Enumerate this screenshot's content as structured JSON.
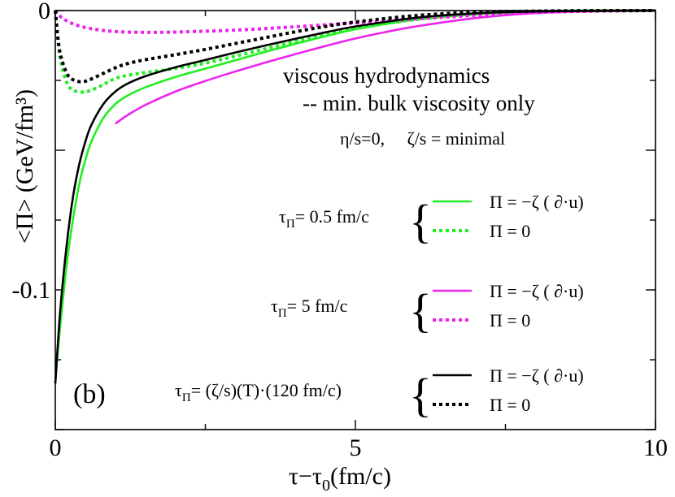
{
  "chart_data": {
    "type": "line",
    "panel_label": "(b)",
    "xlabel": {
      "main": "τ−τ",
      "sub": "0",
      "rest": "(fm/c)"
    },
    "ylabel": "<Π> (GeV/fm³)",
    "xlim": [
      0,
      10
    ],
    "ylim": [
      -0.15,
      0
    ],
    "x_ticks": [
      {
        "value": 0,
        "label": "0"
      },
      {
        "value": 5,
        "label": "5"
      },
      {
        "value": 10,
        "label": "10"
      }
    ],
    "y_ticks": [
      {
        "value": 0,
        "label": "0"
      },
      {
        "value": -0.1,
        "label": "-0.1"
      }
    ],
    "annotations": {
      "line1": "viscous hydrodynamics",
      "line2": "-- min. bulk viscosity only",
      "line3": "η/s=0,     ζ/s = minimal"
    },
    "legend_groups": [
      {
        "tau_label": "τ",
        "tau_sub": "Π",
        "tau_rest": "= 0.5 fm/c",
        "color": "#22ee22",
        "entries": [
          {
            "style": "solid",
            "label": "Π = −ζ ( ∂·u)"
          },
          {
            "style": "dotted",
            "label": "Π = 0"
          }
        ]
      },
      {
        "tau_label": "τ",
        "tau_sub": "Π",
        "tau_rest": "= 5 fm/c",
        "color": "#ee22ee",
        "entries": [
          {
            "style": "solid",
            "label": "Π = −ζ ( ∂·u)"
          },
          {
            "style": "dotted",
            "label": "Π = 0"
          }
        ]
      },
      {
        "tau_label": "τ",
        "tau_sub": "Π",
        "tau_rest": "= (ζ/s)(T)·(120 fm/c)",
        "color": "#000000",
        "entries": [
          {
            "style": "solid",
            "label": "Π = −ζ ( ∂·u)"
          },
          {
            "style": "dotted",
            "label": "Π = 0"
          }
        ]
      }
    ],
    "series": [
      {
        "name": "τΠ=0.5 fm/c, Π = −ζ(∂·u)",
        "color": "#22ee22",
        "style": "solid",
        "x": [
          0,
          0.05,
          0.1,
          0.2,
          0.3,
          0.4,
          0.5,
          0.6,
          0.8,
          1.0,
          1.2,
          1.5,
          2.0,
          2.5,
          3.0,
          3.5,
          4.0,
          4.5,
          5.0,
          6.0,
          7.0,
          8.0,
          9.0,
          10.0
        ],
        "values": [
          -0.1335,
          -0.12,
          -0.109,
          -0.089,
          -0.074,
          -0.062,
          -0.0535,
          -0.047,
          -0.0385,
          -0.0335,
          -0.0305,
          -0.0275,
          -0.0238,
          -0.0208,
          -0.0178,
          -0.0148,
          -0.0119,
          -0.0092,
          -0.0067,
          -0.0032,
          -0.0012,
          -0.0004,
          -0.0001,
          0.0
        ]
      },
      {
        "name": "τΠ=0.5 fm/c, Π = 0",
        "color": "#22ee22",
        "style": "dotted",
        "x": [
          0,
          0.05,
          0.1,
          0.2,
          0.3,
          0.45,
          0.6,
          0.8,
          1.0,
          1.2,
          1.5,
          2.0,
          2.5,
          3.0,
          3.5,
          4.0,
          4.5,
          5.0,
          6.0,
          7.0,
          8.0,
          9.0,
          10.0
        ],
        "values": [
          0.0,
          -0.012,
          -0.019,
          -0.0262,
          -0.0285,
          -0.0292,
          -0.0285,
          -0.0265,
          -0.0243,
          -0.0232,
          -0.0222,
          -0.0207,
          -0.0188,
          -0.0163,
          -0.0137,
          -0.0111,
          -0.0087,
          -0.0064,
          -0.0032,
          -0.0012,
          -0.0004,
          -0.0001,
          0.0
        ]
      },
      {
        "name": "τΠ=5 fm/c, Π = −ζ(∂·u)",
        "color": "#ee22ee",
        "style": "solid",
        "x": [
          1.0,
          1.2,
          1.5,
          2.0,
          2.5,
          3.0,
          3.5,
          4.0,
          4.5,
          5.0,
          5.5,
          6.0,
          7.0,
          8.0,
          9.0,
          10.0
        ],
        "values": [
          -0.0405,
          -0.0375,
          -0.0338,
          -0.029,
          -0.0252,
          -0.0218,
          -0.0186,
          -0.0156,
          -0.0127,
          -0.01,
          -0.0077,
          -0.0057,
          -0.0027,
          -0.0009,
          -0.0002,
          0.0
        ]
      },
      {
        "name": "τΠ=5 fm/c, Π = 0",
        "color": "#ee22ee",
        "style": "dotted",
        "x": [
          0,
          0.1,
          0.3,
          0.6,
          1.0,
          1.5,
          2.0,
          3.0,
          4.0,
          5.0,
          6.0,
          7.0,
          8.0,
          9.0,
          10.0
        ],
        "values": [
          0.0,
          -0.0024,
          -0.0048,
          -0.0065,
          -0.0075,
          -0.0078,
          -0.0077,
          -0.007,
          -0.0058,
          -0.0044,
          -0.003,
          -0.0017,
          -0.0007,
          -0.0002,
          0.0
        ]
      },
      {
        "name": "τΠ=(ζ/s)(T)·(120 fm/c), Π = −ζ(∂·u)",
        "color": "#000000",
        "style": "solid",
        "x": [
          0,
          0.05,
          0.1,
          0.2,
          0.3,
          0.4,
          0.5,
          0.6,
          0.8,
          1.0,
          1.2,
          1.5,
          2.0,
          2.5,
          3.0,
          3.5,
          4.0,
          4.5,
          5.0,
          6.0,
          7.0,
          8.0,
          9.0,
          10.0
        ],
        "values": [
          -0.1335,
          -0.117,
          -0.103,
          -0.082,
          -0.066,
          -0.055,
          -0.047,
          -0.041,
          -0.0335,
          -0.029,
          -0.0262,
          -0.0235,
          -0.0203,
          -0.0177,
          -0.015,
          -0.0125,
          -0.0101,
          -0.0078,
          -0.0057,
          -0.0026,
          -0.001,
          -0.0003,
          -0.0001,
          0.0
        ]
      },
      {
        "name": "τΠ=(ζ/s)(T)·(120 fm/c), Π = 0",
        "color": "#000000",
        "style": "dotted",
        "x": [
          0,
          0.05,
          0.1,
          0.2,
          0.3,
          0.45,
          0.6,
          0.8,
          1.0,
          1.2,
          1.5,
          2.0,
          2.5,
          3.0,
          3.5,
          4.0,
          4.5,
          5.0,
          6.0,
          7.0,
          8.0,
          9.0,
          10.0
        ],
        "values": [
          0.0,
          -0.011,
          -0.017,
          -0.0228,
          -0.0248,
          -0.0255,
          -0.0245,
          -0.0225,
          -0.0205,
          -0.019,
          -0.0176,
          -0.0158,
          -0.0139,
          -0.0118,
          -0.0097,
          -0.0076,
          -0.0057,
          -0.0041,
          -0.0018,
          -0.0006,
          -0.0002,
          0.0,
          0.0
        ]
      }
    ]
  }
}
